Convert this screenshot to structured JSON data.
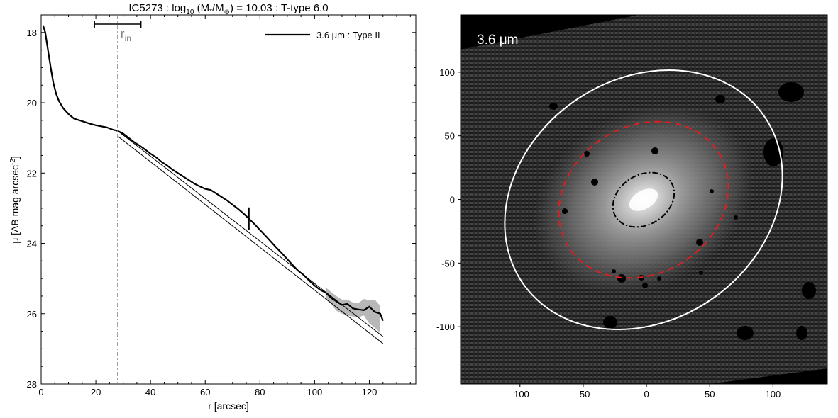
{
  "chart_data": [
    {
      "type": "line",
      "title": "IC5273 : log10 (M*/M⊙) = 10.03 : T-type 6.0",
      "title_parts": {
        "prefix": "IC5273 : log",
        "sub_10": "10",
        "mass_open": " (M",
        "sub_star": "*",
        "mass_mid": "/M",
        "sun": "⊙",
        "suffix": ") = 10.03 : T-type 6.0"
      },
      "xlabel": "r [arcsec]",
      "ylabel": "μ [AB mag arcsec",
      "ylabel_sup": "-2",
      "ylabel_close": "]",
      "xlim": [
        0,
        137
      ],
      "ylim": [
        28,
        17.5
      ],
      "y_inverted": true,
      "xticks": [
        0,
        20,
        40,
        60,
        80,
        100,
        120
      ],
      "yticks": [
        18,
        20,
        22,
        24,
        26,
        28
      ],
      "legend": {
        "label": "3.6 μm : Type II",
        "placement": "top-right",
        "color": "#000000"
      },
      "annotations": {
        "r_in": {
          "text": "r",
          "sub": "in",
          "x": 28,
          "color": "#808080"
        },
        "r_in_range": [
          19.5,
          36.5
        ],
        "break_marker": {
          "x": 76,
          "y": 23.3
        }
      },
      "series": [
        {
          "name": "3.6 μm : Type II",
          "x": [
            0.7,
            1.5,
            2.5,
            3.5,
            4.5,
            5.5,
            6.5,
            8,
            10,
            12,
            14,
            16,
            18,
            20,
            22,
            24,
            26,
            28,
            30,
            32,
            34,
            36,
            38,
            40,
            42,
            44,
            46,
            48,
            50,
            52,
            54,
            56,
            58,
            60,
            62,
            64,
            66,
            68,
            70,
            72,
            74,
            76,
            78,
            80,
            82,
            84,
            86,
            88,
            90,
            92,
            94,
            96,
            98,
            100,
            102,
            104,
            106,
            108,
            110,
            112,
            114,
            116,
            118,
            120,
            122,
            124,
            125
          ],
          "y": [
            17.8,
            18.0,
            18.5,
            19.0,
            19.45,
            19.75,
            19.95,
            20.15,
            20.32,
            20.45,
            20.5,
            20.55,
            20.6,
            20.64,
            20.67,
            20.7,
            20.76,
            20.8,
            20.88,
            21.0,
            21.12,
            21.22,
            21.33,
            21.45,
            21.55,
            21.68,
            21.78,
            21.9,
            22.0,
            22.1,
            22.2,
            22.3,
            22.38,
            22.45,
            22.48,
            22.58,
            22.68,
            22.78,
            22.9,
            23.02,
            23.15,
            23.3,
            23.45,
            23.62,
            23.78,
            23.95,
            24.12,
            24.28,
            24.45,
            24.62,
            24.78,
            24.9,
            25.06,
            25.2,
            25.32,
            25.4,
            25.55,
            25.65,
            25.75,
            25.72,
            25.85,
            25.88,
            25.9,
            25.8,
            25.95,
            26.0,
            26.2
          ],
          "err_lo": [
            25.25,
            25.38,
            25.5,
            25.6,
            25.6,
            25.68,
            25.7,
            25.58,
            25.62,
            25.6,
            25.78
          ],
          "err_hi": [
            25.6,
            25.72,
            25.92,
            26.0,
            26.05,
            26.08,
            26.1,
            26.05,
            26.28,
            26.4,
            26.55
          ],
          "err_x": [
            104,
            106,
            108,
            110,
            112,
            114,
            116,
            118,
            120,
            122,
            124
          ]
        },
        {
          "fit_inner": {
            "x": [
              28,
              125
            ],
            "y": [
              20.8,
              26.65
            ]
          },
          "fit_outer": {
            "x": [
              28,
              125
            ],
            "y": [
              20.95,
              26.85
            ]
          }
        }
      ]
    },
    {
      "type": "image",
      "label": "3.6 μm",
      "xlim": [
        -147,
        143
      ],
      "ylim": [
        -145,
        145
      ],
      "xticks": [
        -100,
        -50,
        0,
        50,
        100
      ],
      "yticks": [
        100,
        50,
        0,
        -50,
        -100
      ],
      "colors": {
        "background": "#000000",
        "outer_ellipse": "#ffffff",
        "mid_ellipse": "#dd1f1f",
        "inner_ellipse": "#000000"
      }
    }
  ]
}
